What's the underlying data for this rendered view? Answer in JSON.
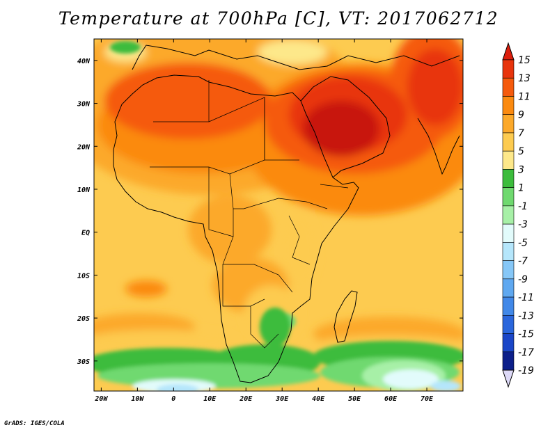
{
  "title": "Temperature at 700hPa [C], VT: 2017062712",
  "credit": "GrADS: IGES/COLA",
  "map": {
    "lon_range": [
      -22,
      80
    ],
    "lat_range": [
      -37,
      45
    ],
    "lon_ticks": [
      {
        "value": -20,
        "label": "20W"
      },
      {
        "value": -10,
        "label": "10W"
      },
      {
        "value": 0,
        "label": "0"
      },
      {
        "value": 10,
        "label": "10E"
      },
      {
        "value": 20,
        "label": "20E"
      },
      {
        "value": 30,
        "label": "30E"
      },
      {
        "value": 40,
        "label": "40E"
      },
      {
        "value": 50,
        "label": "50E"
      },
      {
        "value": 60,
        "label": "60E"
      },
      {
        "value": 70,
        "label": "70E"
      }
    ],
    "lat_ticks": [
      {
        "value": 40,
        "label": "40N"
      },
      {
        "value": 30,
        "label": "30N"
      },
      {
        "value": 20,
        "label": "20N"
      },
      {
        "value": 10,
        "label": "10N"
      },
      {
        "value": 0,
        "label": "EQ"
      },
      {
        "value": -10,
        "label": "10S"
      },
      {
        "value": -20,
        "label": "20S"
      },
      {
        "value": -30,
        "label": "30S"
      }
    ]
  },
  "colorbar": {
    "labels": [
      "15",
      "13",
      "11",
      "9",
      "7",
      "5",
      "3",
      "1",
      "-1",
      "-3",
      "-5",
      "-7",
      "-9",
      "-11",
      "-13",
      "-15",
      "-17",
      "-19"
    ],
    "colors": [
      "#e8340c",
      "#f55a0c",
      "#fb8a10",
      "#fca92a",
      "#fdcb50",
      "#fde88a",
      "#3cbc3c",
      "#6fd96f",
      "#a7f0a7",
      "#e2fbfb",
      "#b5e6fb",
      "#86c7f7",
      "#5fa8f0",
      "#4188e8",
      "#2a66dc",
      "#1a46c8",
      "#0c1f8a"
    ],
    "top_color": "#dc1e0c",
    "bottom_color": "#ddd9f7"
  },
  "field_colors": {
    "t15": "#c8140c",
    "t13": "#e8340c",
    "t11": "#f55a0c",
    "t9": "#fb8a10",
    "t7": "#fca92a",
    "t5": "#fdcb50",
    "t3": "#fde88a",
    "t1": "#3cbc3c",
    "tm1": "#6fd96f",
    "tm3": "#a7f0a7",
    "tm5": "#e2fbfb",
    "tm7": "#b5e6fb",
    "tm9": "#86c7f7"
  }
}
